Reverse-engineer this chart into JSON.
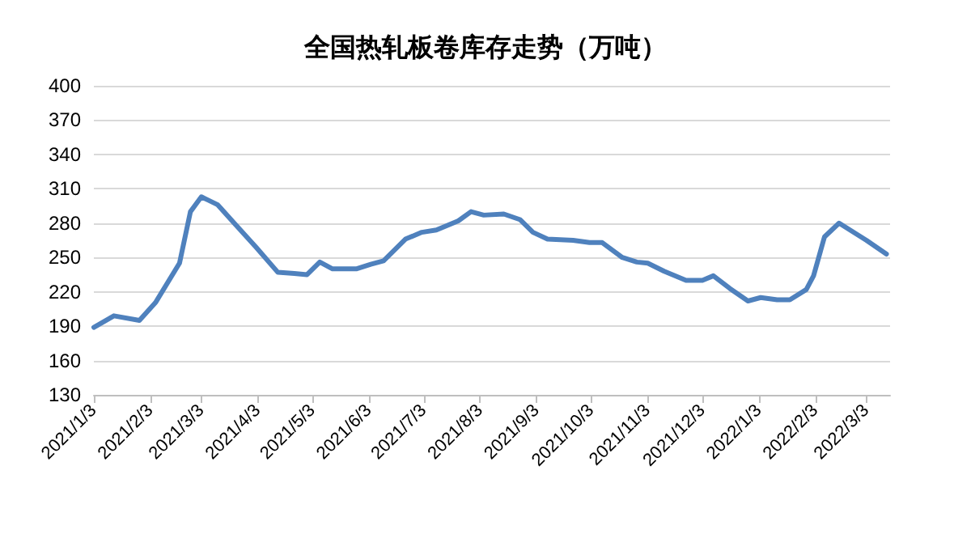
{
  "chart_data": {
    "type": "line",
    "title": "全国热轧板卷库存走势（万吨）",
    "x": [
      "2021-01-03",
      "2021-01-14",
      "2021-01-28",
      "2021-02-06",
      "2021-02-19",
      "2021-02-25",
      "2021-03-03",
      "2021-03-12",
      "2021-03-21",
      "2021-04-02",
      "2021-04-14",
      "2021-04-23",
      "2021-04-30",
      "2021-05-07",
      "2021-05-14",
      "2021-05-27",
      "2021-06-04",
      "2021-06-11",
      "2021-06-23",
      "2021-07-02",
      "2021-07-10",
      "2021-07-22",
      "2021-07-29",
      "2021-08-05",
      "2021-08-16",
      "2021-08-25",
      "2021-09-01",
      "2021-09-09",
      "2021-09-23",
      "2021-10-02",
      "2021-10-09",
      "2021-10-20",
      "2021-10-28",
      "2021-11-03",
      "2021-11-12",
      "2021-11-24",
      "2021-12-03",
      "2021-12-09",
      "2021-12-18",
      "2021-12-28",
      "2022-01-04",
      "2022-01-13",
      "2022-01-20",
      "2022-01-29",
      "2022-02-02",
      "2022-02-08",
      "2022-02-16",
      "2022-03-03",
      "2022-03-14"
    ],
    "series": [
      {
        "color": "#4f81bd",
        "values": [
          189,
          199,
          195,
          211,
          245,
          290,
          303,
          296,
          280,
          259,
          237,
          236,
          235,
          246,
          240,
          240,
          244,
          247,
          266,
          272,
          274,
          282,
          290,
          287,
          288,
          283,
          272,
          266,
          265,
          263,
          263,
          250,
          246,
          245,
          238,
          230,
          230,
          234,
          223,
          212,
          215,
          213,
          213,
          222,
          234,
          268,
          280,
          265,
          253
        ]
      }
    ],
    "xlim": [
      "2021-01-03",
      "2022-03-16"
    ],
    "xticks": [
      {
        "value": "2021-01-03",
        "label": "2021/1/3"
      },
      {
        "value": "2021-02-03",
        "label": "2021/2/3"
      },
      {
        "value": "2021-03-03",
        "label": "2021/3/3"
      },
      {
        "value": "2021-04-03",
        "label": "2021/4/3"
      },
      {
        "value": "2021-05-03",
        "label": "2021/5/3"
      },
      {
        "value": "2021-06-03",
        "label": "2021/6/3"
      },
      {
        "value": "2021-07-03",
        "label": "2021/7/3"
      },
      {
        "value": "2021-08-03",
        "label": "2021/8/3"
      },
      {
        "value": "2021-09-03",
        "label": "2021/9/3"
      },
      {
        "value": "2021-10-03",
        "label": "2021/10/3"
      },
      {
        "value": "2021-11-03",
        "label": "2021/11/3"
      },
      {
        "value": "2021-12-03",
        "label": "2021/12/3"
      },
      {
        "value": "2022-01-03",
        "label": "2022/1/3"
      },
      {
        "value": "2022-02-03",
        "label": "2022/2/3"
      },
      {
        "value": "2022-03-03",
        "label": "2022/3/3"
      }
    ],
    "ylim": [
      130,
      400
    ],
    "yticks": [
      130,
      160,
      190,
      220,
      250,
      280,
      310,
      340,
      370,
      400
    ],
    "grid": "y",
    "marker": "none",
    "line_style": "solid"
  }
}
